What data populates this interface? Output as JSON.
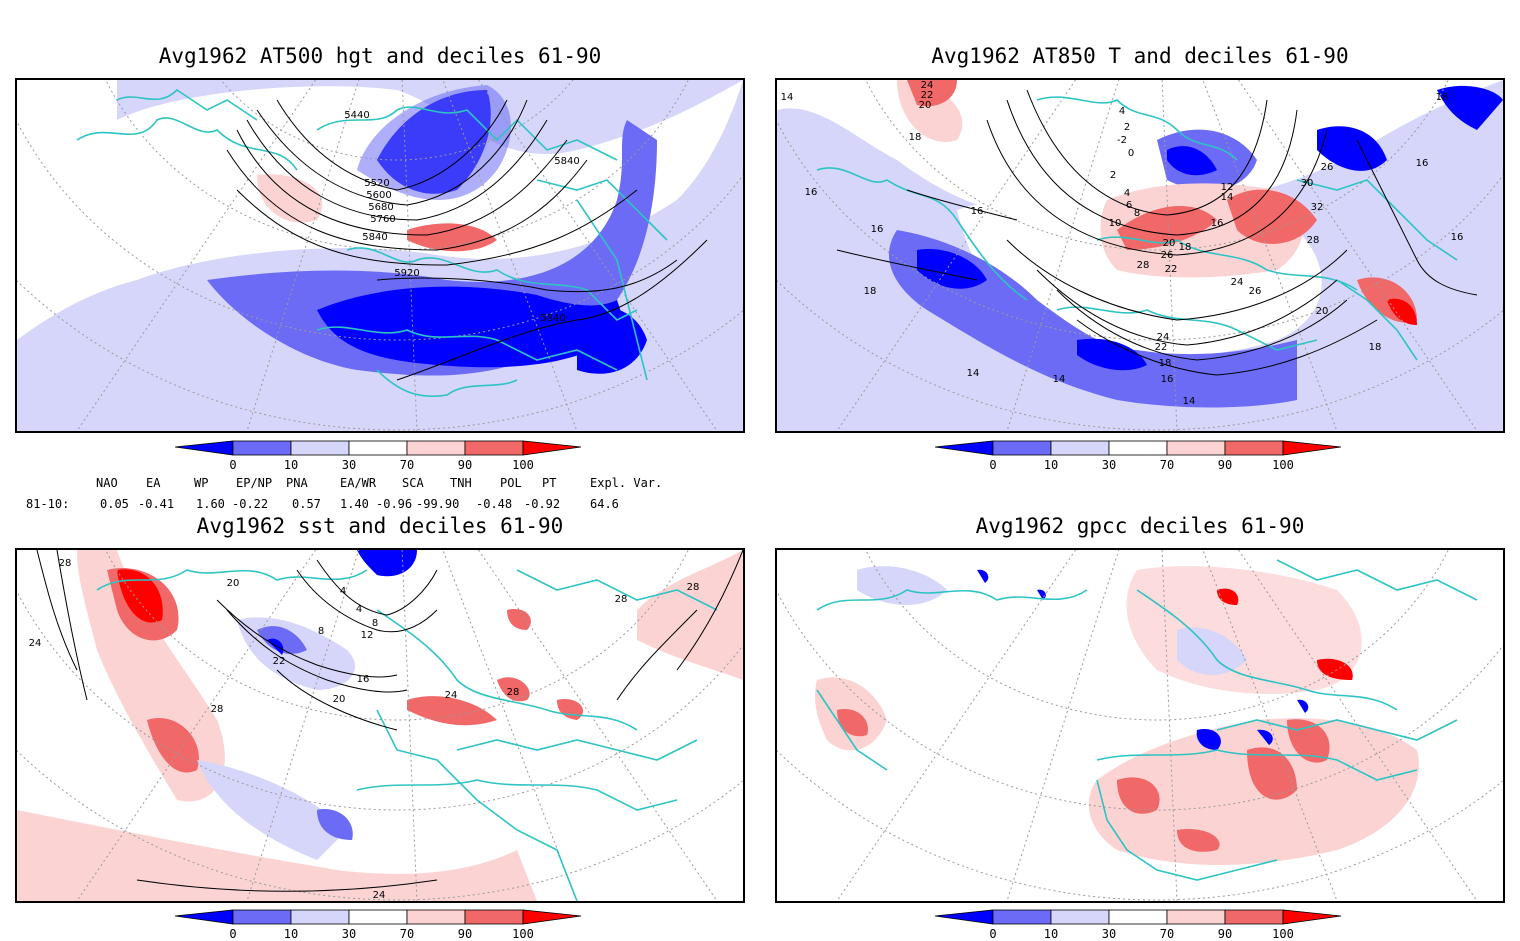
{
  "panels": [
    {
      "title": "Avg1962 AT500 hgt and deciles 61-90",
      "contour_labels": [
        "5440",
        "5520",
        "5600",
        "5680",
        "5760",
        "5840",
        "5840",
        "5920",
        "5840"
      ]
    },
    {
      "title": "Avg1962 AT850 T and deciles 61-90",
      "contour_labels": [
        "24",
        "22",
        "20",
        "18",
        "14",
        "16",
        "16",
        "16",
        "18",
        "4",
        "2",
        "0",
        "-2",
        "2",
        "4",
        "6",
        "8",
        "10",
        "12",
        "14",
        "16",
        "18",
        "20",
        "22",
        "26",
        "28",
        "24",
        "26",
        "30",
        "32",
        "28",
        "26",
        "18",
        "16",
        "20",
        "24",
        "22",
        "18",
        "16",
        "14",
        "14",
        "14",
        "18",
        "16"
      ]
    },
    {
      "title": "Avg1962 sst and deciles 61-90",
      "contour_labels": [
        "28",
        "24",
        "20",
        "4",
        "8",
        "12",
        "4",
        "8",
        "16",
        "20",
        "22",
        "24",
        "28",
        "28",
        "28",
        "24",
        "28"
      ]
    },
    {
      "title": "Avg1962 gpcc deciles 61-90",
      "contour_labels": []
    }
  ],
  "colorbar": {
    "ticks": [
      "0",
      "10",
      "30",
      "70",
      "90",
      "100"
    ],
    "colors": [
      "#0000ff",
      "#6b6bf5",
      "#d6d6fa",
      "#ffffff",
      "#fbd3d3",
      "#f06868",
      "#ff0000"
    ]
  },
  "indices": {
    "headers": [
      "NAO",
      "EA",
      "WP",
      "EP/NP",
      "PNA",
      "EA/WR",
      "SCA",
      "TNH",
      "POL",
      "PT",
      "Expl. Var."
    ],
    "row_label": "81-10:",
    "values": [
      "0.05",
      "-0.41",
      "1.60",
      "-0.22",
      "0.57",
      "1.40",
      "-0.96",
      "-99.90",
      "-0.48",
      "-0.92",
      "64.6"
    ]
  },
  "map_colors": {
    "coast": "#2ec4c4",
    "grid": "#9a9a9a",
    "contour": "#000000"
  }
}
